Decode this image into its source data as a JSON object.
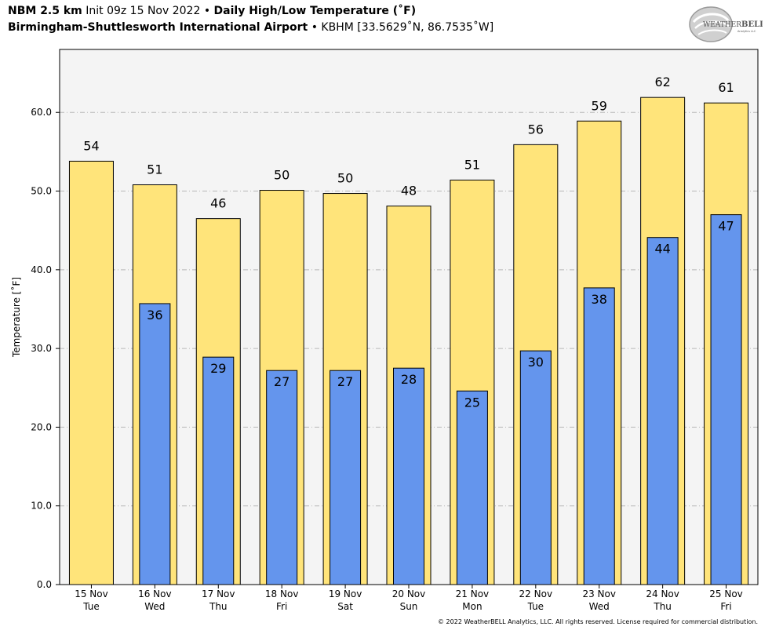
{
  "header": {
    "model": "NBM 2.5 km",
    "init": "Init 09z 15 Nov 2022",
    "bullet": "•",
    "product": "Daily High/Low Temperature (˚F)",
    "station_name": "Birmingham-Shuttlesworth International Airport",
    "station_info": "KBHM [33.5629˚N, 86.7535˚W]"
  },
  "logo": {
    "text_main": "WEATHER",
    "text_bold": "BELL",
    "text_sub": "Analytics LLC"
  },
  "copyright": "© 2022 WeatherBELL Analytics, LLC. All rights reserved. License required for commercial distribution.",
  "chart_data": {
    "type": "bar",
    "ylabel": "Temperature [˚F]",
    "ylim": [
      0,
      68
    ],
    "yticks": [
      0,
      10,
      20,
      30,
      40,
      50,
      60
    ],
    "ytick_labels": [
      "0.0",
      "10.0",
      "20.0",
      "30.0",
      "40.0",
      "50.0",
      "60.0"
    ],
    "grid": "horizontal dashed",
    "categories": [
      {
        "date": "15 Nov",
        "day": "Tue"
      },
      {
        "date": "16 Nov",
        "day": "Wed"
      },
      {
        "date": "17 Nov",
        "day": "Thu"
      },
      {
        "date": "18 Nov",
        "day": "Fri"
      },
      {
        "date": "19 Nov",
        "day": "Sat"
      },
      {
        "date": "20 Nov",
        "day": "Sun"
      },
      {
        "date": "21 Nov",
        "day": "Mon"
      },
      {
        "date": "22 Nov",
        "day": "Tue"
      },
      {
        "date": "23 Nov",
        "day": "Wed"
      },
      {
        "date": "24 Nov",
        "day": "Thu"
      },
      {
        "date": "25 Nov",
        "day": "Fri"
      }
    ],
    "series": [
      {
        "color": "#ffe47a",
        "values": [
          53.8,
          50.8,
          46.5,
          50.1,
          49.7,
          48.1,
          51.4,
          55.9,
          58.9,
          61.9,
          61.2
        ],
        "labels": [
          "54",
          "51",
          "46",
          "50",
          "50",
          "48",
          "51",
          "56",
          "59",
          "62",
          "61"
        ]
      },
      {
        "color": "#6495ed",
        "values": [
          null,
          35.7,
          28.9,
          27.2,
          27.2,
          27.5,
          24.6,
          29.7,
          37.7,
          44.1,
          47.0
        ],
        "labels": [
          "",
          "36",
          "29",
          "27",
          "27",
          "28",
          "25",
          "30",
          "38",
          "44",
          "47"
        ]
      }
    ]
  }
}
